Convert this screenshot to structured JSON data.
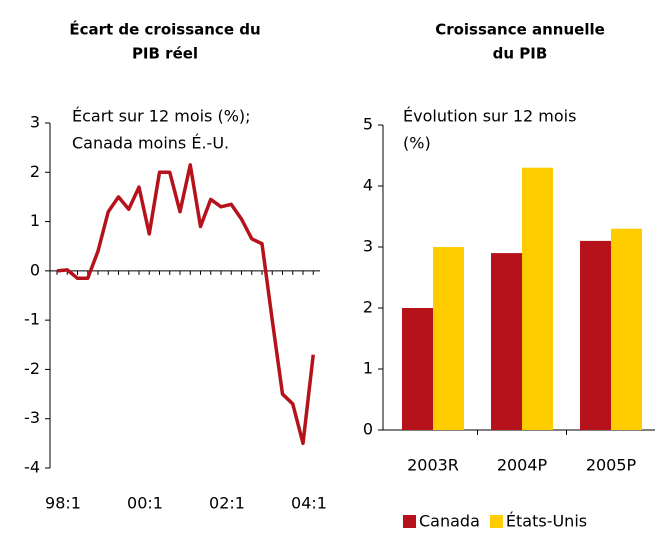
{
  "chart_data": [
    {
      "type": "line",
      "title": [
        "Écart de croissance du",
        "PIB réel"
      ],
      "annotation": [
        "Écart sur 12 mois (%);",
        "Canada moins É.-U."
      ],
      "categories": [
        "98:1",
        null,
        null,
        null,
        null,
        null,
        null,
        null,
        "00:1",
        null,
        null,
        null,
        null,
        null,
        null,
        null,
        "02:1",
        null,
        null,
        null,
        null,
        null,
        null,
        null,
        "04:1",
        null
      ],
      "values": [
        0,
        0.02,
        -0.15,
        -0.15,
        0.4,
        1.2,
        1.5,
        1.25,
        1.7,
        0.75,
        2.0,
        2.0,
        1.2,
        2.15,
        0.9,
        1.45,
        1.3,
        1.35,
        1.05,
        0.65,
        0.55,
        -1.0,
        -2.5,
        -2.7,
        -3.5,
        -1.7
      ],
      "color": "#b5121b",
      "ylim": [
        -4,
        3
      ],
      "yticks": [
        -4,
        -3,
        -2,
        -1,
        0,
        1,
        2,
        3
      ]
    },
    {
      "type": "bar",
      "title": [
        "Croissance annuelle",
        "du PIB"
      ],
      "annotation": [
        "Évolution sur 12 mois",
        "(%)"
      ],
      "categories": [
        "2003R",
        "2004P",
        "2005P"
      ],
      "series": [
        {
          "name": "Canada",
          "color": "#b5121b",
          "values": [
            2.0,
            2.9,
            3.1
          ]
        },
        {
          "name": "États-Unis",
          "color": "#ffcc00",
          "values": [
            3.0,
            4.3,
            3.3
          ]
        }
      ],
      "ylim": [
        0,
        5
      ],
      "yticks": [
        0,
        1,
        2,
        3,
        4,
        5
      ],
      "legend": "bottom"
    }
  ]
}
